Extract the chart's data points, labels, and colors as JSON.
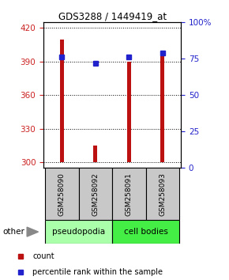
{
  "title": "GDS3288 / 1449419_at",
  "samples": [
    "GSM258090",
    "GSM258092",
    "GSM258091",
    "GSM258093"
  ],
  "counts": [
    410,
    315,
    390,
    395
  ],
  "percentiles": [
    76,
    72,
    76,
    79
  ],
  "ylim_left": [
    295,
    425
  ],
  "ylim_right": [
    0,
    100
  ],
  "yticks_left": [
    300,
    330,
    360,
    390,
    420
  ],
  "yticks_right": [
    0,
    25,
    50,
    75,
    100
  ],
  "ytick_right_labels": [
    "0",
    "25",
    "50",
    "75",
    "100%"
  ],
  "bar_color": "#bb1111",
  "dot_color": "#2222cc",
  "grid_color": "black",
  "groups": [
    "pseudopodia",
    "cell bodies"
  ],
  "group_color_pseudo": "#aaffaa",
  "group_color_cell": "#44ee44",
  "bar_width": 0.12,
  "label_count": "count",
  "label_percentile": "percentile rank within the sample",
  "other_label": "other",
  "axis_left_color": "#cc2222",
  "axis_right_color": "#2222cc",
  "ybase": 300
}
